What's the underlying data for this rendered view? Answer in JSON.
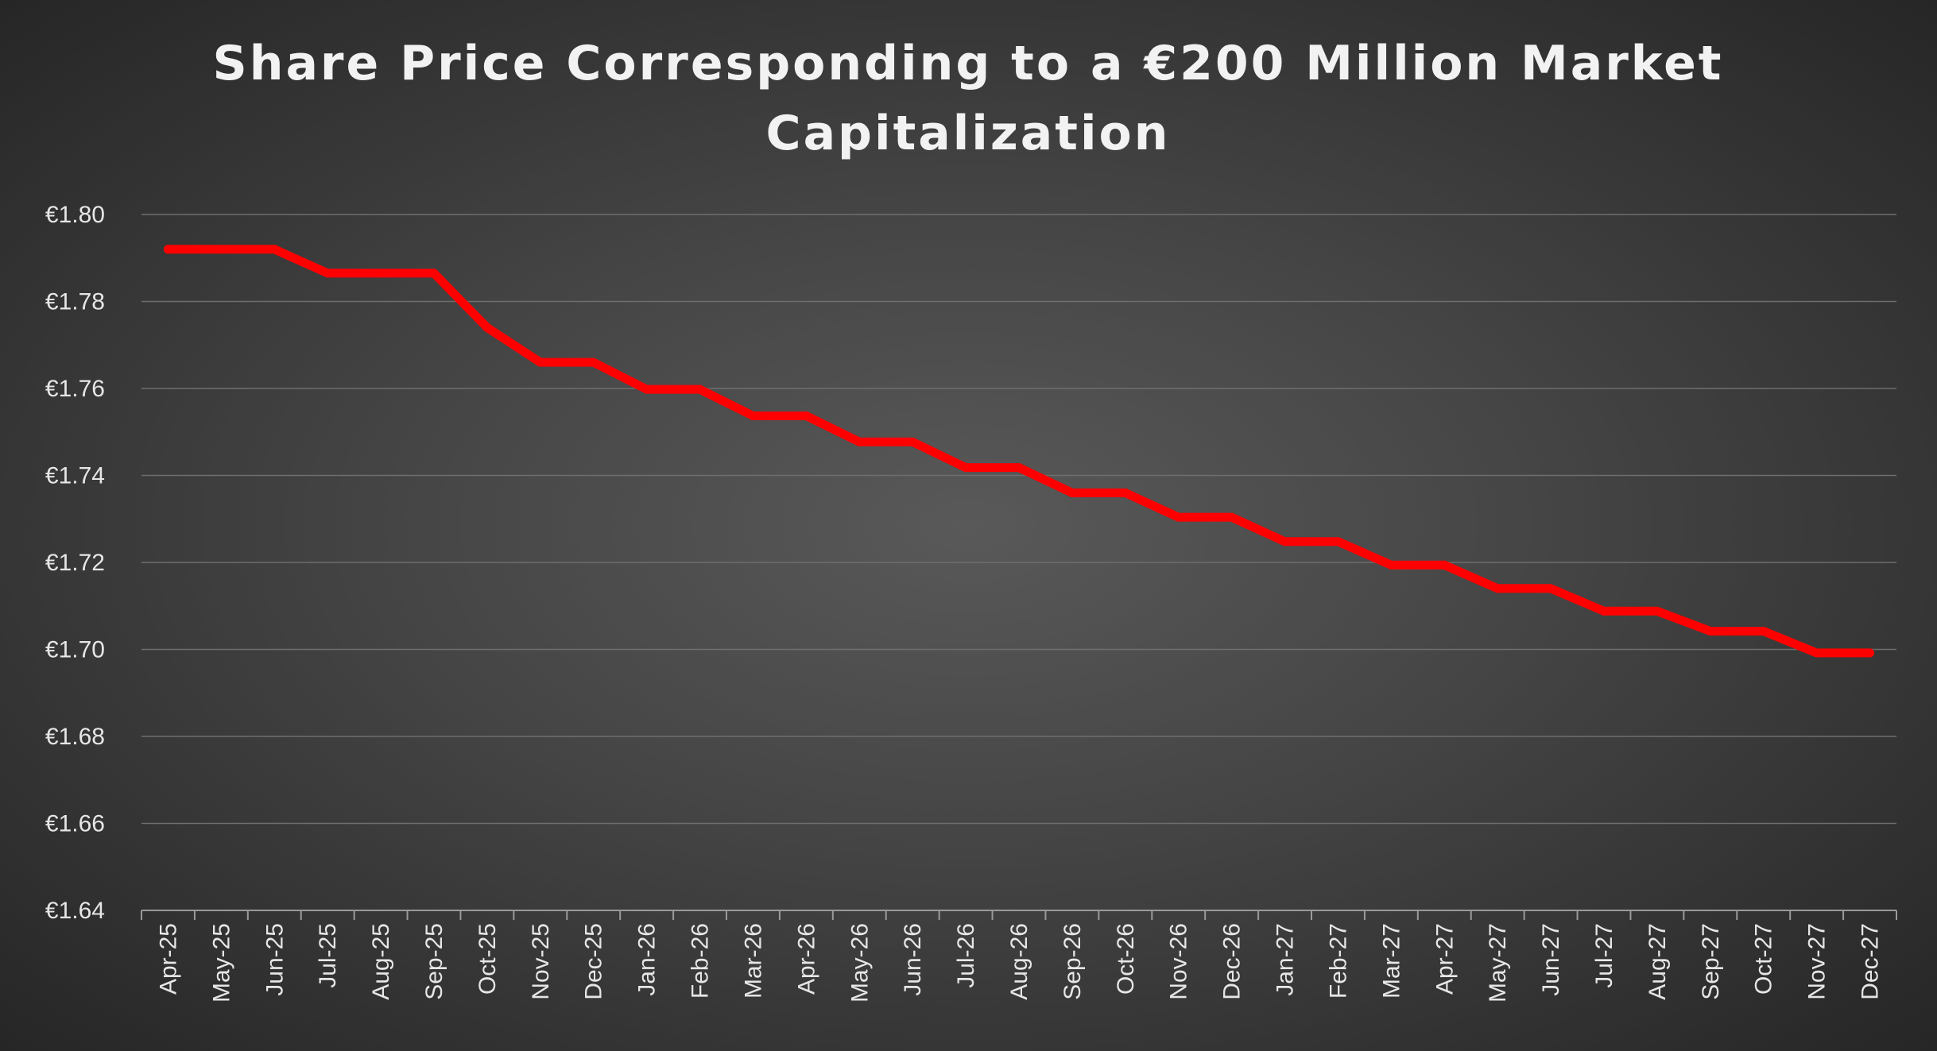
{
  "chart_data": {
    "type": "line",
    "title_lines": [
      "Share Price Corresponding to a €200 Million Market",
      "Capitalization"
    ],
    "xlabel": "",
    "ylabel": "",
    "ylim": [
      1.64,
      1.8
    ],
    "y_ticks": [
      1.64,
      1.66,
      1.68,
      1.7,
      1.72,
      1.74,
      1.76,
      1.78,
      1.8
    ],
    "y_tick_labels": [
      "€1.64",
      "€1.66",
      "€1.68",
      "€1.70",
      "€1.72",
      "€1.74",
      "€1.76",
      "€1.78",
      "€1.80"
    ],
    "grid": true,
    "legend": "none",
    "categories": [
      "Apr-25",
      "May-25",
      "Jun-25",
      "Jul-25",
      "Aug-25",
      "Sep-25",
      "Oct-25",
      "Nov-25",
      "Dec-25",
      "Jan-26",
      "Feb-26",
      "Mar-26",
      "Apr-26",
      "May-26",
      "Jun-26",
      "Jul-26",
      "Aug-26",
      "Sep-26",
      "Oct-26",
      "Nov-26",
      "Dec-26",
      "Jan-27",
      "Feb-27",
      "Mar-27",
      "Apr-27",
      "May-27",
      "Jun-27",
      "Jul-27",
      "Aug-27",
      "Sep-27",
      "Oct-27",
      "Nov-27",
      "Dec-27"
    ],
    "series": [
      {
        "name": "Share Price",
        "color": "#ff0000",
        "values": [
          1.792,
          1.792,
          1.792,
          1.7865,
          1.7865,
          1.7865,
          1.774,
          1.766,
          1.766,
          1.7598,
          1.7598,
          1.7537,
          1.7537,
          1.7477,
          1.7477,
          1.7418,
          1.7418,
          1.736,
          1.736,
          1.7304,
          1.7304,
          1.7248,
          1.7248,
          1.7194,
          1.7194,
          1.714,
          1.714,
          1.7088,
          1.7088,
          1.7042,
          1.7042,
          1.6992,
          1.6992
        ]
      }
    ]
  }
}
